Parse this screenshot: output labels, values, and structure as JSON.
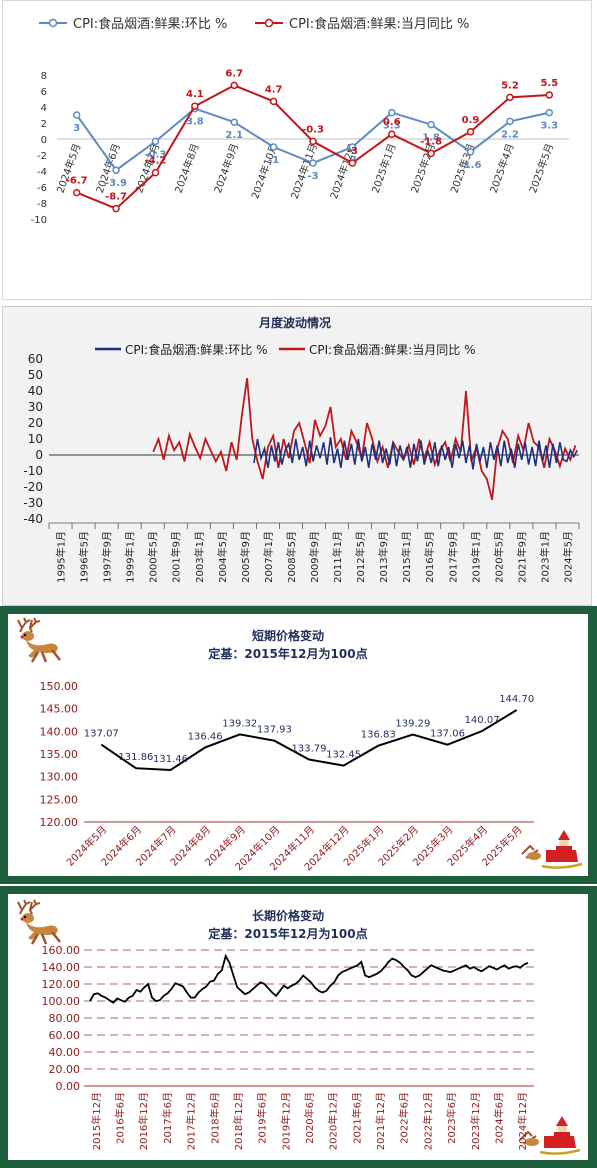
{
  "panel1": {
    "chart_data": {
      "type": "line",
      "categories": [
        "2024年5月",
        "2024年6月",
        "2024年7月",
        "2024年8月",
        "2024年9月",
        "2024年10月",
        "2024年11月",
        "2024年12月",
        "2025年1月",
        "2025年2月",
        "2025年3月",
        "2025年4月",
        "2025年5月"
      ],
      "series": [
        {
          "name": "CPI:食品烟酒:鲜果:环比 %",
          "color": "#5b8ac4",
          "values": [
            3,
            -3.9,
            -0.3,
            3.8,
            2.1,
            -1,
            -3,
            -1,
            3.3,
            1.8,
            -1.6,
            2.2,
            3.3
          ],
          "labels": [
            "3",
            "-3.9",
            "-0.3",
            "3.8",
            "2.1",
            "-1",
            "-3",
            "-1",
            "3.3",
            "1.8",
            "-1.6",
            "2.2",
            "3.3"
          ]
        },
        {
          "name": "CPI:食品烟酒:鲜果:当月同比 %",
          "color": "#c0161c",
          "values": [
            -6.7,
            -8.7,
            -4.2,
            4.1,
            6.7,
            4.7,
            -0.3,
            -3,
            0.6,
            -1.8,
            0.9,
            5.2,
            5.5
          ],
          "labels": [
            "-6.7",
            "-8.7",
            "-4.2",
            "4.1",
            "6.7",
            "4.7",
            "-0.3",
            "-3",
            "0.6",
            "-1.8",
            "0.9",
            "5.2",
            "5.5"
          ]
        }
      ],
      "ylim": [
        -10,
        8
      ],
      "yticks": [
        "8",
        "6",
        "4",
        "2",
        "0",
        "-2",
        "-4",
        "-6",
        "-8",
        "-10"
      ],
      "legend": "top"
    }
  },
  "panel2": {
    "title": "月度波动情况",
    "chart_data": {
      "type": "line",
      "categories": [
        "1995年1月",
        "1996年5月",
        "1997年9月",
        "1999年1月",
        "2000年5月",
        "2001年9月",
        "2003年1月",
        "2004年5月",
        "2005年9月",
        "2007年1月",
        "2008年5月",
        "2009年9月",
        "2011年1月",
        "2012年5月",
        "2013年9月",
        "2015年1月",
        "2016年5月",
        "2017年9月",
        "2019年1月",
        "2020年5月",
        "2021年9月",
        "2023年1月",
        "2024年5月"
      ],
      "series": [
        {
          "name": "CPI:食品烟酒:鲜果:环比 %",
          "color": "#1f2f7a",
          "x": [
            2006.8,
            2007.0,
            2007.2,
            2007.4,
            2007.6,
            2007.8,
            2008.0,
            2008.2,
            2008.4,
            2008.6,
            2008.8,
            2009.0,
            2009.2,
            2009.4,
            2009.6,
            2009.8,
            2010.0,
            2010.2,
            2010.4,
            2010.6,
            2010.8,
            2011.0,
            2011.2,
            2011.4,
            2011.6,
            2011.8,
            2012.0,
            2012.2,
            2012.4,
            2012.6,
            2012.8,
            2013.0,
            2013.2,
            2013.4,
            2013.6,
            2013.8,
            2014.0,
            2014.2,
            2014.4,
            2014.6,
            2014.8,
            2015.0,
            2015.2,
            2015.4,
            2015.6,
            2015.8,
            2016.0,
            2016.2,
            2016.4,
            2016.6,
            2016.8,
            2017.0,
            2017.2,
            2017.4,
            2017.6,
            2017.8,
            2018.0,
            2018.2,
            2018.4,
            2018.6,
            2018.8,
            2019.0,
            2019.2,
            2019.4,
            2019.6,
            2019.8,
            2020.0,
            2020.2,
            2020.4,
            2020.6,
            2020.8,
            2021.0,
            2021.2,
            2021.4,
            2021.6,
            2021.8,
            2022.0,
            2022.2,
            2022.4,
            2022.6,
            2022.8,
            2023.0,
            2023.2,
            2023.4,
            2023.6,
            2023.8,
            2024.0,
            2024.2,
            2024.4,
            2024.6,
            2024.8,
            2025.0,
            2025.2,
            2025.4
          ],
          "values": [
            -5,
            10,
            -2,
            4,
            -8,
            6,
            -4,
            8,
            -6,
            3,
            7,
            -5,
            10,
            -3,
            5,
            -7,
            9,
            -4,
            6,
            -2,
            8,
            -6,
            11,
            -5,
            4,
            -8,
            9,
            -3,
            7,
            -6,
            10,
            -4,
            5,
            -8,
            7,
            -3,
            9,
            -5,
            4,
            -6,
            8,
            -7,
            6,
            -3,
            5,
            -8,
            7,
            -4,
            9,
            -6,
            3,
            -5,
            8,
            -7,
            6,
            -3,
            5,
            -8,
            7,
            -2,
            9,
            -5,
            6,
            -9,
            7,
            -4,
            5,
            -8,
            8,
            -3,
            6,
            -7,
            9,
            -5,
            4,
            -8,
            7,
            -3,
            8,
            -6,
            5,
            -7,
            9,
            -4,
            6,
            -8,
            7,
            -5,
            8,
            -3,
            -4,
            3,
            -1,
            3
          ]
        },
        {
          "name": "CPI:食品烟酒:鲜果:当月同比 %",
          "color": "#c0161c",
          "x": [
            2001.0,
            2001.3,
            2001.6,
            2001.9,
            2002.2,
            2002.5,
            2002.8,
            2003.1,
            2003.4,
            2003.7,
            2004.0,
            2004.3,
            2004.6,
            2004.9,
            2005.2,
            2005.5,
            2005.8,
            2006.1,
            2006.4,
            2006.7,
            2007.0,
            2007.3,
            2007.6,
            2007.9,
            2008.2,
            2008.5,
            2008.8,
            2009.1,
            2009.4,
            2009.7,
            2010.0,
            2010.3,
            2010.6,
            2010.9,
            2011.2,
            2011.5,
            2011.8,
            2012.1,
            2012.4,
            2012.7,
            2013.0,
            2013.3,
            2013.6,
            2013.9,
            2014.2,
            2014.5,
            2014.8,
            2015.1,
            2015.4,
            2015.7,
            2016.0,
            2016.3,
            2016.6,
            2016.9,
            2017.2,
            2017.5,
            2017.8,
            2018.1,
            2018.4,
            2018.7,
            2019.0,
            2019.3,
            2019.6,
            2019.9,
            2020.2,
            2020.5,
            2020.8,
            2021.1,
            2021.4,
            2021.7,
            2022.0,
            2022.3,
            2022.6,
            2022.9,
            2023.2,
            2023.5,
            2023.8,
            2024.1,
            2024.4,
            2024.7,
            2025.0,
            2025.3
          ],
          "values": [
            2,
            10,
            -3,
            12,
            3,
            8,
            -4,
            13,
            5,
            -2,
            10,
            3,
            -4,
            2,
            -10,
            8,
            -3,
            25,
            48,
            10,
            -4,
            -15,
            5,
            12,
            -8,
            10,
            -2,
            15,
            20,
            8,
            -5,
            22,
            12,
            18,
            30,
            5,
            10,
            -3,
            15,
            8,
            -2,
            20,
            10,
            -4,
            5,
            -8,
            8,
            2,
            -3,
            6,
            -6,
            10,
            -2,
            8,
            -6,
            3,
            8,
            -4,
            10,
            2,
            40,
            -4,
            5,
            -10,
            -15,
            -28,
            4,
            15,
            10,
            -5,
            12,
            3,
            20,
            8,
            5,
            -8,
            10,
            3,
            -7,
            4,
            -3,
            6
          ]
        }
      ],
      "ylim": [
        -40,
        60
      ],
      "yticks": [
        "60",
        "50",
        "40",
        "30",
        "20",
        "10",
        "0",
        "-10",
        "-20",
        "-30",
        "-40"
      ],
      "legend": "top"
    }
  },
  "panel3": {
    "title": "短期价格变动",
    "subtitle": "定基：2015年12月为100点",
    "chart_data": {
      "type": "line",
      "categories": [
        "2024年5月",
        "2024年6月",
        "2024年7月",
        "2024年8月",
        "2024年9月",
        "2024年10月",
        "2024年11月",
        "2024年12月",
        "2025年1月",
        "2025年2月",
        "2025年3月",
        "2025年4月",
        "2025年5月"
      ],
      "values": [
        137.07,
        131.86,
        131.46,
        136.46,
        139.32,
        137.93,
        133.79,
        132.45,
        136.83,
        139.29,
        137.06,
        140.07,
        144.7
      ],
      "labels": [
        "137.07",
        "131.86",
        "131.46",
        "136.46",
        "139.32",
        "137.93",
        "133.79",
        "132.45",
        "136.83",
        "139.29",
        "137.06",
        "140.07",
        "144.70"
      ],
      "ylim": [
        120,
        150
      ],
      "yticks": [
        "150.00",
        "145.00",
        "140.00",
        "135.00",
        "130.00",
        "125.00",
        "120.00"
      ],
      "color": "#000000"
    }
  },
  "panel4": {
    "title": "长期价格变动",
    "subtitle": "定基：2015年12月为100点",
    "chart_data": {
      "type": "line",
      "categories": [
        "2015年12月",
        "2016年6月",
        "2016年12月",
        "2017年6月",
        "2017年12月",
        "2018年6月",
        "2018年12月",
        "2019年6月",
        "2019年12月",
        "2020年6月",
        "2020年12月",
        "2021年6月",
        "2021年12月",
        "2022年6月",
        "2022年12月",
        "2023年6月",
        "2023年12月",
        "2024年6月",
        "2024年12月"
      ],
      "x": [
        0,
        1,
        2,
        3,
        4,
        5,
        6,
        7,
        8,
        9,
        10,
        11,
        12,
        13,
        14,
        15,
        16,
        17,
        18,
        19,
        20,
        21,
        22,
        23,
        24,
        25,
        26,
        27,
        28,
        29,
        30,
        31,
        32,
        33,
        34,
        35,
        36,
        37,
        38,
        39,
        40,
        41,
        42,
        43,
        44,
        45,
        46,
        47,
        48,
        49,
        50,
        51,
        52,
        53,
        54,
        55,
        56,
        57,
        58,
        59,
        60,
        61,
        62,
        63,
        64,
        65,
        66,
        67,
        68,
        69,
        70,
        71,
        72,
        73,
        74,
        75,
        76,
        77,
        78,
        79,
        80,
        81,
        82,
        83,
        84,
        85,
        86,
        87,
        88,
        89,
        90,
        91,
        92,
        93,
        94,
        95,
        96,
        97,
        98,
        99,
        100,
        101,
        102,
        103,
        104,
        105,
        106,
        107,
        108,
        109,
        110,
        111,
        112,
        113
      ],
      "values": [
        100,
        108,
        109,
        106,
        104,
        101,
        98,
        103,
        101,
        99,
        104,
        106,
        113,
        111,
        116,
        120,
        104,
        100,
        101,
        106,
        109,
        114,
        121,
        119,
        117,
        110,
        104,
        104,
        110,
        114,
        117,
        123,
        124,
        132,
        136,
        153,
        145,
        130,
        116,
        112,
        108,
        110,
        114,
        118,
        122,
        120,
        115,
        110,
        106,
        112,
        118,
        115,
        118,
        120,
        124,
        130,
        126,
        122,
        116,
        112,
        110,
        112,
        118,
        122,
        130,
        134,
        136,
        138,
        140,
        142,
        146,
        130,
        128,
        130,
        132,
        135,
        140,
        146,
        150,
        148,
        145,
        140,
        136,
        130,
        128,
        130,
        134,
        138,
        142,
        140,
        138,
        136,
        135,
        134,
        136,
        138,
        140,
        142,
        138,
        140,
        137,
        135,
        138,
        141,
        139,
        137,
        140,
        142,
        138,
        140,
        141,
        139,
        143,
        145
      ],
      "ylim": [
        0,
        160
      ],
      "yticks": [
        "160.00",
        "140.00",
        "120.00",
        "100.00",
        "80.00",
        "60.00",
        "40.00",
        "20.00",
        "0.00"
      ],
      "color": "#000000"
    }
  }
}
